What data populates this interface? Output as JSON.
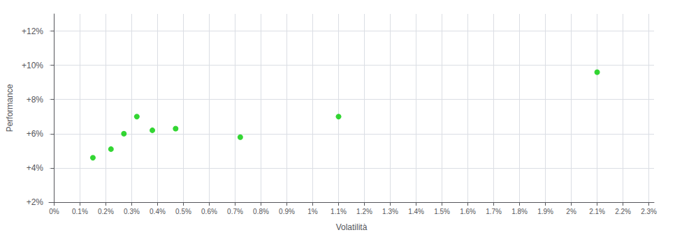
{
  "chart_data": {
    "type": "scatter",
    "xlabel": "Volatilità",
    "ylabel": "Performance",
    "x": [
      0.0015,
      0.0022,
      0.0027,
      0.0032,
      0.0038,
      0.0047,
      0.0072,
      0.011,
      0.021
    ],
    "values": [
      0.046,
      0.051,
      0.06,
      0.07,
      0.062,
      0.063,
      0.058,
      0.07,
      0.096
    ],
    "color": "#00CC00",
    "xlim": [
      -0.0002,
      0.0232
    ],
    "ylim": [
      0.02,
      0.13
    ],
    "xticks": [
      {
        "value": 0,
        "label": "0%"
      },
      {
        "value": 0.001,
        "label": "0.1%"
      },
      {
        "value": 0.002,
        "label": "0.2%"
      },
      {
        "value": 0.003,
        "label": "0.3%"
      },
      {
        "value": 0.004,
        "label": "0.4%"
      },
      {
        "value": 0.005,
        "label": "0.5%"
      },
      {
        "value": 0.006,
        "label": "0.6%"
      },
      {
        "value": 0.007,
        "label": "0.7%"
      },
      {
        "value": 0.008,
        "label": "0.8%"
      },
      {
        "value": 0.009,
        "label": "0.9%"
      },
      {
        "value": 0.01,
        "label": "1%"
      },
      {
        "value": 0.011,
        "label": "1.1%"
      },
      {
        "value": 0.012,
        "label": "1.2%"
      },
      {
        "value": 0.013,
        "label": "1.3%"
      },
      {
        "value": 0.014,
        "label": "1.4%"
      },
      {
        "value": 0.015,
        "label": "1.5%"
      },
      {
        "value": 0.016,
        "label": "1.6%"
      },
      {
        "value": 0.017,
        "label": "1.7%"
      },
      {
        "value": 0.018,
        "label": "1.8%"
      },
      {
        "value": 0.019,
        "label": "1.9%"
      },
      {
        "value": 0.02,
        "label": "2%"
      },
      {
        "value": 0.021,
        "label": "2.1%"
      },
      {
        "value": 0.022,
        "label": "2.2%"
      },
      {
        "value": 0.023,
        "label": "2.3%"
      }
    ],
    "yticks": [
      {
        "value": 0.02,
        "label": "+2%"
      },
      {
        "value": 0.04,
        "label": "+4%"
      },
      {
        "value": 0.06,
        "label": "+6%"
      },
      {
        "value": 0.08,
        "label": "+8%"
      },
      {
        "value": 0.1,
        "label": "+10%"
      },
      {
        "value": 0.12,
        "label": "+12%"
      }
    ],
    "grid": true
  }
}
